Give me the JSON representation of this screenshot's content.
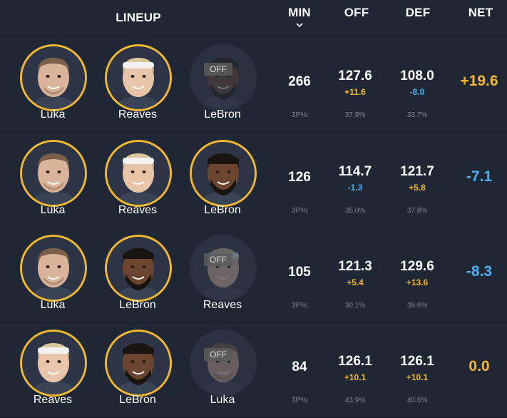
{
  "header": {
    "lineup": "LINEUP",
    "min": "MIN",
    "off": "OFF",
    "def": "DEF",
    "net": "NET",
    "sort_icon": "chevron-down-icon"
  },
  "off_badge": "OFF",
  "pct_label": "3P%:",
  "colors": {
    "background": "#1f2634",
    "ring": "#f2b930",
    "positive": "#f2b930",
    "negative": "#4fb0f0",
    "muted": "#7f8796"
  },
  "rows": [
    {
      "players": [
        {
          "name": "Luka",
          "on": true
        },
        {
          "name": "Reaves",
          "on": true
        },
        {
          "name": "LeBron",
          "on": false
        }
      ],
      "min": "266",
      "off": {
        "rating": "127.6",
        "diff": "+11.6",
        "pct": "37.9%"
      },
      "def": {
        "rating": "108.0",
        "diff": "-8.0",
        "pct": "33.7%"
      },
      "net": "+19.6"
    },
    {
      "players": [
        {
          "name": "Luka",
          "on": true
        },
        {
          "name": "Reaves",
          "on": true
        },
        {
          "name": "LeBron",
          "on": true
        }
      ],
      "min": "126",
      "off": {
        "rating": "114.7",
        "diff": "-1.3",
        "pct": "35.0%"
      },
      "def": {
        "rating": "121.7",
        "diff": "+5.8",
        "pct": "37.8%"
      },
      "net": "-7.1"
    },
    {
      "players": [
        {
          "name": "Luka",
          "on": true
        },
        {
          "name": "LeBron",
          "on": true
        },
        {
          "name": "Reaves",
          "on": false
        }
      ],
      "min": "105",
      "off": {
        "rating": "121.3",
        "diff": "+5.4",
        "pct": "30.1%"
      },
      "def": {
        "rating": "129.6",
        "diff": "+13.6",
        "pct": "39.6%"
      },
      "net": "-8.3"
    },
    {
      "players": [
        {
          "name": "Reaves",
          "on": true
        },
        {
          "name": "LeBron",
          "on": true
        },
        {
          "name": "Luka",
          "on": false
        }
      ],
      "min": "84",
      "off": {
        "rating": "126.1",
        "diff": "+10.1",
        "pct": "43.9%"
      },
      "def": {
        "rating": "126.1",
        "diff": "+10.1",
        "pct": "40.6%"
      },
      "net": "0.0"
    }
  ]
}
